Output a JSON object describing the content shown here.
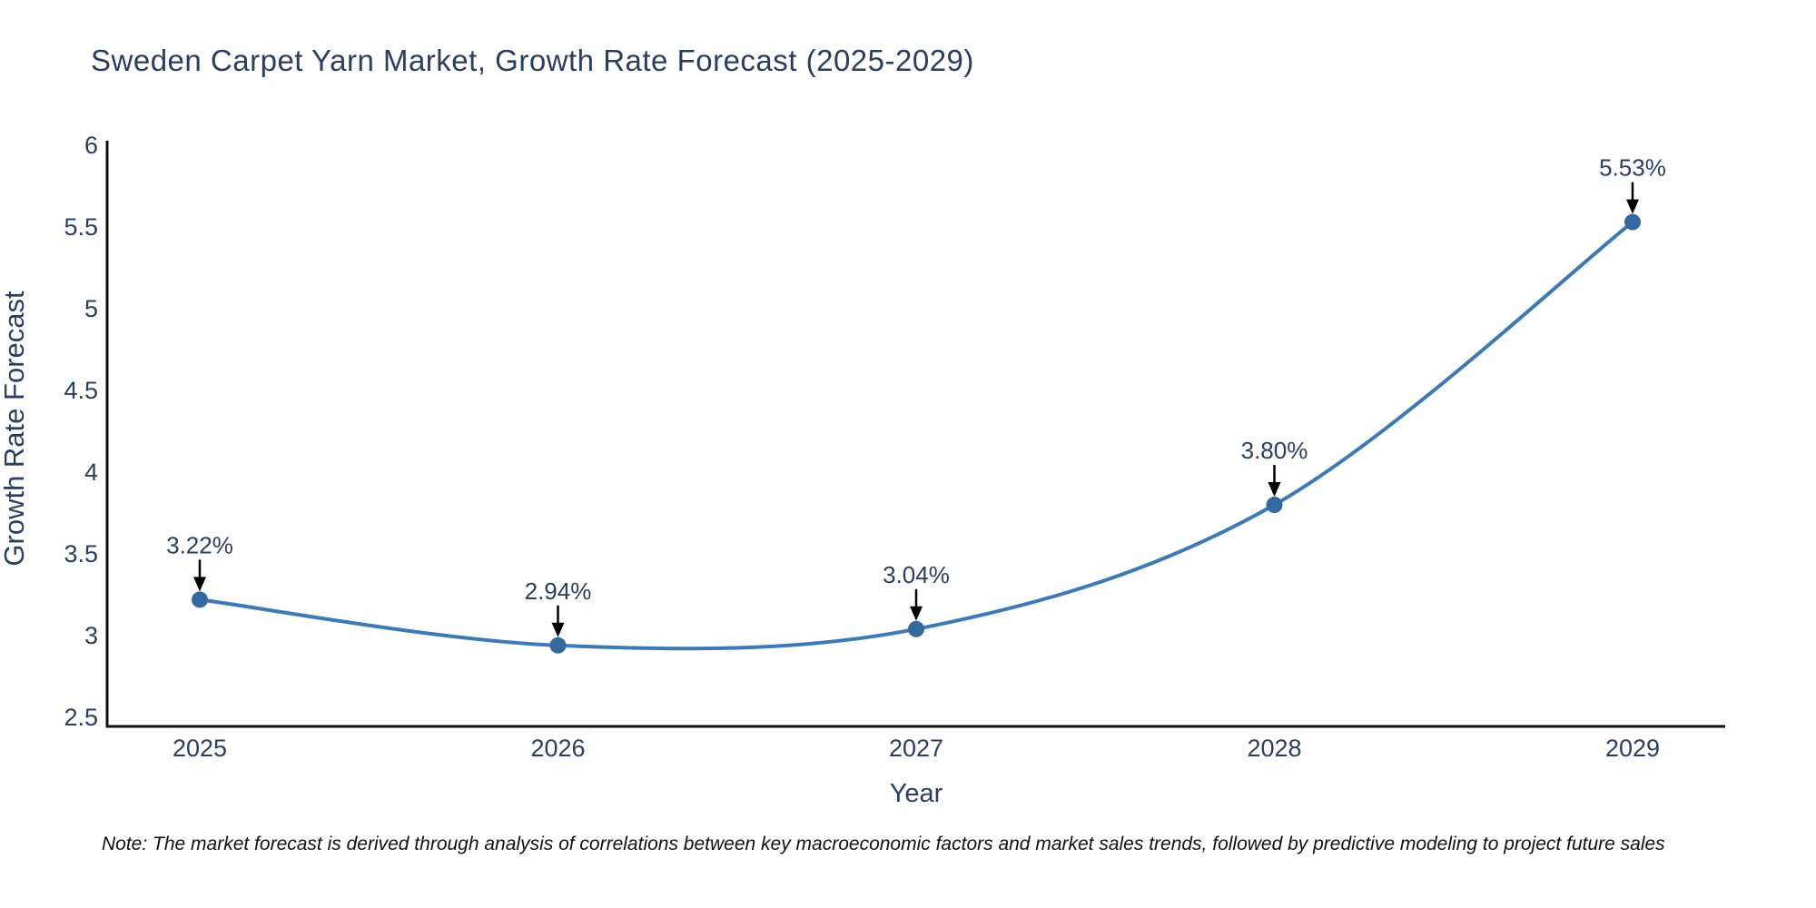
{
  "title": "Sweden Carpet Yarn Market, Growth Rate Forecast (2025-2029)",
  "note": "Note: The market forecast is derived through analysis of correlations between key macroeconomic factors and market sales trends, followed by predictive modeling to project future sales",
  "chart_data": {
    "type": "line",
    "title": "Sweden Carpet Yarn Market, Growth Rate Forecast (2025-2029)",
    "xlabel": "Year",
    "ylabel": "Growth Rate Forecast",
    "categories": [
      "2025",
      "2026",
      "2027",
      "2028",
      "2029"
    ],
    "values": [
      3.22,
      2.94,
      3.04,
      3.8,
      5.53
    ],
    "point_labels": [
      "3.22%",
      "2.94%",
      "3.04%",
      "3.80%",
      "5.53%"
    ],
    "series": [
      {
        "name": "Growth Rate Forecast",
        "values": [
          3.22,
          2.94,
          3.04,
          3.8,
          5.53
        ]
      }
    ],
    "yticks": [
      2.5,
      3,
      3.5,
      4,
      4.5,
      5,
      5.5,
      6
    ],
    "ytick_labels": [
      "2.5",
      "3",
      "3.5",
      "4",
      "4.5",
      "5",
      "5.5",
      "6"
    ],
    "ylim": [
      2.444,
      6.028
    ],
    "line_shape": "spline",
    "grid": false,
    "legend": "none",
    "annotations_style": "value label with down arrow to each point",
    "colors": {
      "line": "#3d7ab5",
      "marker": "#35699e",
      "axis": "#111111",
      "text": "#2a3f5f",
      "arrow": "#000000",
      "background": "#ffffff"
    }
  }
}
